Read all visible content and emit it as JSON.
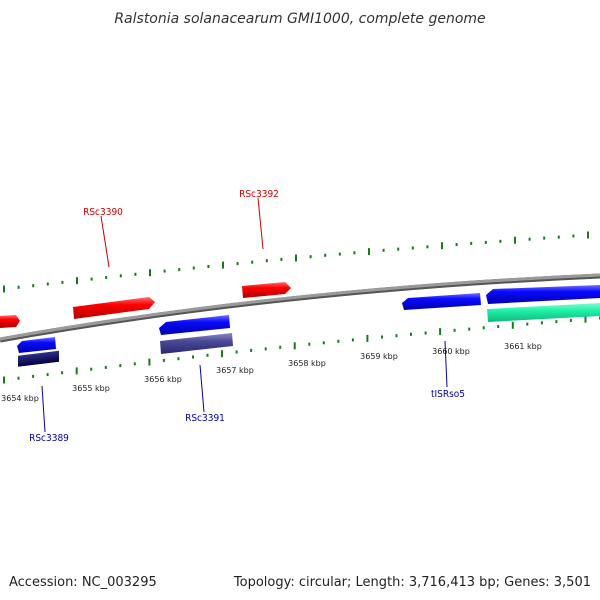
{
  "header": {
    "title": "Ralstonia solanacearum GMI1000, complete genome"
  },
  "footer": {
    "accession": "Accession: NC_003295",
    "summary": "Topology: circular; Length: 3,716,413 bp; Genes: 3,501"
  },
  "colors": {
    "forward_gene": "#ff0000",
    "reverse_gene": "#0000ff",
    "reverse_gene_dark": "#00005a",
    "reverse_gene_muted": "#3c3c8c",
    "mobile_element": "#14e6a0",
    "backbone": "#8a8a8a",
    "tick": "#1a7a1a",
    "forward_label": "#cc0000",
    "reverse_label": "#0000aa"
  },
  "axis": {
    "ticks_kbp": [
      "3654 kbp",
      "3655 kbp",
      "3656 kbp",
      "3657 kbp",
      "3658 kbp",
      "3659 kbp",
      "3660 kbp",
      "3661 kbp"
    ]
  },
  "genes": {
    "labelled": [
      {
        "name": "RSc3390",
        "strand": "forward"
      },
      {
        "name": "RSc3392",
        "strand": "forward"
      },
      {
        "name": "RSc3389",
        "strand": "reverse"
      },
      {
        "name": "RSc3391",
        "strand": "reverse"
      },
      {
        "name": "tISRso5",
        "strand": "reverse"
      }
    ]
  }
}
